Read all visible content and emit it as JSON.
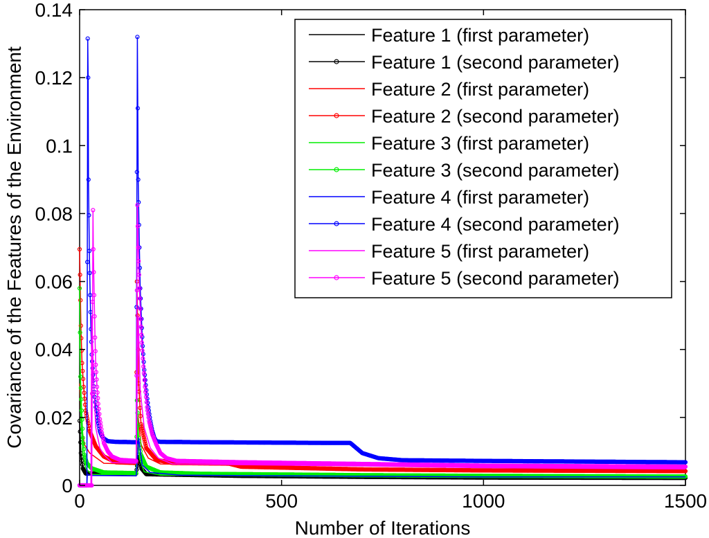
{
  "chart_data": {
    "type": "line",
    "title": "",
    "xlabel": "Number of Iterations",
    "ylabel": "Covariance of the Features of the Environment",
    "xlim": [
      0,
      1500
    ],
    "ylim": [
      0,
      0.14
    ],
    "xticks": [
      0,
      500,
      1000,
      1500
    ],
    "xtick_labels": [
      "0",
      "500",
      "1000",
      "1500"
    ],
    "yticks": [
      0,
      0.02,
      0.04,
      0.06,
      0.08,
      0.1,
      0.12,
      0.14
    ],
    "ytick_labels": [
      "0",
      "0.02",
      "0.04",
      "0.06",
      "0.08",
      "0.1",
      "0.12",
      "0.14"
    ],
    "grid": false,
    "legend_position": "top-right",
    "series": [
      {
        "name": "Feature 1 (first parameter)",
        "color": "#000000",
        "marker": "none",
        "points": [
          [
            0,
            0.016
          ],
          [
            3,
            0.0085
          ],
          [
            8,
            0.0045
          ],
          [
            15,
            0.003
          ],
          [
            140,
            0.003
          ],
          [
            146,
            0.008
          ],
          [
            153,
            0.0045
          ],
          [
            165,
            0.003
          ],
          [
            400,
            0.0025
          ],
          [
            700,
            0.0022
          ],
          [
            1000,
            0.002
          ],
          [
            1500,
            0.002
          ]
        ]
      },
      {
        "name": "Feature 1 (second parameter)",
        "color": "#000000",
        "marker": "circle",
        "points": [
          [
            0,
            0.019
          ],
          [
            3,
            0.0095
          ],
          [
            8,
            0.005
          ],
          [
            15,
            0.0035
          ],
          [
            140,
            0.0035
          ],
          [
            146,
            0.009
          ],
          [
            153,
            0.005
          ],
          [
            165,
            0.0033
          ],
          [
            400,
            0.0028
          ],
          [
            700,
            0.0025
          ],
          [
            1000,
            0.0023
          ],
          [
            1500,
            0.0022
          ]
        ]
      },
      {
        "name": "Feature 2 (first parameter)",
        "color": "#ff0000",
        "marker": "none",
        "points": [
          [
            0,
            0.03
          ],
          [
            5,
            0.017
          ],
          [
            12,
            0.012
          ],
          [
            25,
            0.0095
          ],
          [
            60,
            0.0065
          ],
          [
            140,
            0.0063
          ],
          [
            145,
            0.02
          ],
          [
            152,
            0.012
          ],
          [
            170,
            0.008
          ],
          [
            200,
            0.0063
          ],
          [
            370,
            0.0061
          ],
          [
            400,
            0.0052
          ],
          [
            700,
            0.0045
          ],
          [
            1000,
            0.0042
          ],
          [
            1500,
            0.004
          ]
        ]
      },
      {
        "name": "Feature 2 (second parameter)",
        "color": "#ff0000",
        "marker": "circle",
        "points": [
          [
            0,
            0.0695
          ],
          [
            3,
            0.047
          ],
          [
            6,
            0.036
          ],
          [
            10,
            0.029
          ],
          [
            15,
            0.022
          ],
          [
            25,
            0.016
          ],
          [
            40,
            0.0115
          ],
          [
            60,
            0.0085
          ],
          [
            90,
            0.0068
          ],
          [
            140,
            0.0066
          ],
          [
            142,
            0.06
          ],
          [
            146,
            0.03
          ],
          [
            152,
            0.018
          ],
          [
            165,
            0.011
          ],
          [
            190,
            0.0075
          ],
          [
            230,
            0.0066
          ],
          [
            370,
            0.0064
          ],
          [
            400,
            0.0055
          ],
          [
            700,
            0.0047
          ],
          [
            1000,
            0.0044
          ],
          [
            1500,
            0.0042
          ]
        ]
      },
      {
        "name": "Feature 3 (first parameter)",
        "color": "#00ee00",
        "marker": "none",
        "points": [
          [
            0,
            0.045
          ],
          [
            3,
            0.02
          ],
          [
            8,
            0.009
          ],
          [
            15,
            0.005
          ],
          [
            30,
            0.0032
          ],
          [
            140,
            0.0032
          ],
          [
            143,
            0.018
          ],
          [
            148,
            0.008
          ],
          [
            160,
            0.004
          ],
          [
            200,
            0.003
          ],
          [
            700,
            0.0027
          ],
          [
            1000,
            0.0025
          ],
          [
            1500,
            0.0024
          ]
        ]
      },
      {
        "name": "Feature 3 (second parameter)",
        "color": "#00ee00",
        "marker": "circle",
        "points": [
          [
            0,
            0.058
          ],
          [
            2,
            0.032
          ],
          [
            5,
            0.022
          ],
          [
            8,
            0.014
          ],
          [
            12,
            0.009
          ],
          [
            18,
            0.0065
          ],
          [
            30,
            0.005
          ],
          [
            60,
            0.0038
          ],
          [
            140,
            0.0036
          ],
          [
            142,
            0.025
          ],
          [
            146,
            0.014
          ],
          [
            152,
            0.009
          ],
          [
            165,
            0.0055
          ],
          [
            200,
            0.0038
          ],
          [
            300,
            0.0034
          ],
          [
            700,
            0.003
          ],
          [
            1000,
            0.0028
          ],
          [
            1500,
            0.0026
          ]
        ]
      },
      {
        "name": "Feature 4 (first parameter)",
        "color": "#0000ff",
        "marker": "none",
        "points": [
          [
            0,
            0
          ],
          [
            18,
            0
          ],
          [
            19,
            0.0032
          ],
          [
            30,
            0.0029
          ],
          [
            140,
            0.0028
          ],
          [
            146,
            0.014
          ],
          [
            155,
            0.006
          ],
          [
            175,
            0.0038
          ],
          [
            250,
            0.003
          ],
          [
            700,
            0.0027
          ],
          [
            1000,
            0.0025
          ],
          [
            1500,
            0.0025
          ]
        ]
      },
      {
        "name": "Feature 4 (second parameter)",
        "color": "#0000ff",
        "marker": "circle",
        "points": [
          [
            0,
            0
          ],
          [
            18,
            0
          ],
          [
            20,
            0.1315
          ],
          [
            21,
            0.12
          ],
          [
            22,
            0.09
          ],
          [
            24,
            0.069
          ],
          [
            26,
            0.056
          ],
          [
            28,
            0.046
          ],
          [
            30,
            0.0385
          ],
          [
            33,
            0.0325
          ],
          [
            36,
            0.0275
          ],
          [
            40,
            0.023
          ],
          [
            45,
            0.019
          ],
          [
            50,
            0.016
          ],
          [
            55,
            0.0145
          ],
          [
            60,
            0.0138
          ],
          [
            70,
            0.013
          ],
          [
            90,
            0.0128
          ],
          [
            140,
            0.0127
          ],
          [
            143,
            0.132
          ],
          [
            145,
            0.09
          ],
          [
            148,
            0.07
          ],
          [
            150,
            0.058
          ],
          [
            153,
            0.049
          ],
          [
            156,
            0.041
          ],
          [
            160,
            0.034
          ],
          [
            165,
            0.028
          ],
          [
            170,
            0.023
          ],
          [
            175,
            0.019
          ],
          [
            180,
            0.016
          ],
          [
            185,
            0.014
          ],
          [
            190,
            0.013
          ],
          [
            200,
            0.0128
          ],
          [
            300,
            0.0127
          ],
          [
            600,
            0.0125
          ],
          [
            670,
            0.0125
          ],
          [
            680,
            0.0115
          ],
          [
            700,
            0.0095
          ],
          [
            740,
            0.008
          ],
          [
            800,
            0.0074
          ],
          [
            1000,
            0.0072
          ],
          [
            1500,
            0.0068
          ]
        ]
      },
      {
        "name": "Feature 5 (first parameter)",
        "color": "#ff00ff",
        "marker": "none",
        "points": [
          [
            0,
            0
          ],
          [
            28,
            0
          ],
          [
            30,
            0.05
          ],
          [
            35,
            0.03
          ],
          [
            40,
            0.017
          ],
          [
            50,
            0.011
          ],
          [
            60,
            0.009
          ],
          [
            80,
            0.0067
          ],
          [
            140,
            0.0065
          ],
          [
            145,
            0.05
          ],
          [
            150,
            0.028
          ],
          [
            160,
            0.017
          ],
          [
            175,
            0.011
          ],
          [
            195,
            0.008
          ],
          [
            230,
            0.0063
          ],
          [
            700,
            0.0057
          ],
          [
            1000,
            0.0052
          ],
          [
            1500,
            0.0048
          ]
        ]
      },
      {
        "name": "Feature 5 (second parameter)",
        "color": "#ff00ff",
        "marker": "circle",
        "points": [
          [
            0,
            0
          ],
          [
            30,
            0
          ],
          [
            33,
            0.081
          ],
          [
            34,
            0.0695
          ],
          [
            36,
            0.056
          ],
          [
            38,
            0.0435
          ],
          [
            40,
            0.0355
          ],
          [
            43,
            0.029
          ],
          [
            46,
            0.024
          ],
          [
            50,
            0.0195
          ],
          [
            55,
            0.0155
          ],
          [
            60,
            0.0125
          ],
          [
            70,
            0.01
          ],
          [
            80,
            0.0085
          ],
          [
            100,
            0.0075
          ],
          [
            140,
            0.0072
          ],
          [
            143,
            0.0825
          ],
          [
            145,
            0.07
          ],
          [
            148,
            0.058
          ],
          [
            151,
            0.049
          ],
          [
            154,
            0.042
          ],
          [
            158,
            0.035
          ],
          [
            162,
            0.029
          ],
          [
            167,
            0.023
          ],
          [
            172,
            0.019
          ],
          [
            180,
            0.015
          ],
          [
            190,
            0.012
          ],
          [
            200,
            0.0095
          ],
          [
            215,
            0.008
          ],
          [
            240,
            0.0072
          ],
          [
            400,
            0.0068
          ],
          [
            700,
            0.0063
          ],
          [
            1000,
            0.0058
          ],
          [
            1500,
            0.0055
          ]
        ]
      }
    ]
  }
}
